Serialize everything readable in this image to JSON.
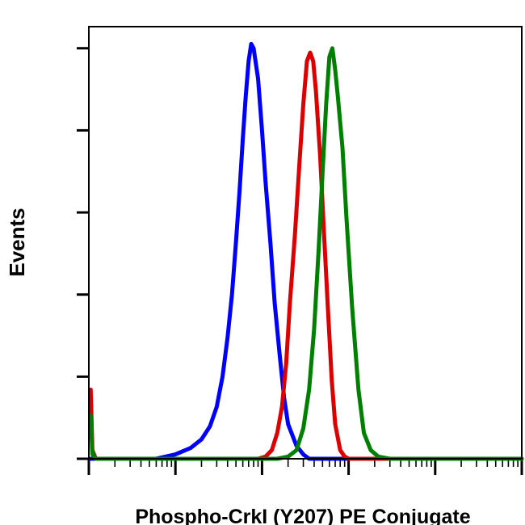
{
  "chart_data": {
    "type": "line",
    "xlabel": "Phospho-CrkI (Y207) PE Conjugate",
    "ylabel": "Events",
    "x_scale": "log",
    "xlim": [
      1,
      100000
    ],
    "ylim": [
      0,
      1
    ],
    "y_major_ticks": [
      0,
      0.19,
      0.38,
      0.57,
      0.76,
      0.95
    ],
    "grid": false,
    "legend": "none",
    "series": [
      {
        "color": "#0000ff",
        "points": [
          [
            1.05,
            0.0
          ],
          [
            6,
            0.0
          ],
          [
            10,
            0.01
          ],
          [
            15,
            0.025
          ],
          [
            20,
            0.045
          ],
          [
            25,
            0.075
          ],
          [
            30,
            0.12
          ],
          [
            35,
            0.19
          ],
          [
            40,
            0.28
          ],
          [
            45,
            0.38
          ],
          [
            50,
            0.5
          ],
          [
            55,
            0.62
          ],
          [
            60,
            0.74
          ],
          [
            65,
            0.84
          ],
          [
            70,
            0.92
          ],
          [
            75,
            0.96
          ],
          [
            80,
            0.95
          ],
          [
            90,
            0.88
          ],
          [
            100,
            0.76
          ],
          [
            110,
            0.64
          ],
          [
            125,
            0.5
          ],
          [
            140,
            0.36
          ],
          [
            160,
            0.24
          ],
          [
            180,
            0.14
          ],
          [
            200,
            0.08
          ],
          [
            250,
            0.03
          ],
          [
            300,
            0.01
          ],
          [
            350,
            0.0
          ],
          [
            100000,
            0.0
          ]
        ]
      },
      {
        "color": "#dd0000",
        "points": [
          [
            1.05,
            0.16
          ],
          [
            1.1,
            0.02
          ],
          [
            1.2,
            0.0
          ],
          [
            90,
            0.0
          ],
          [
            110,
            0.005
          ],
          [
            130,
            0.02
          ],
          [
            150,
            0.06
          ],
          [
            170,
            0.12
          ],
          [
            190,
            0.22
          ],
          [
            210,
            0.36
          ],
          [
            240,
            0.52
          ],
          [
            270,
            0.68
          ],
          [
            300,
            0.82
          ],
          [
            330,
            0.92
          ],
          [
            360,
            0.94
          ],
          [
            390,
            0.92
          ],
          [
            420,
            0.85
          ],
          [
            470,
            0.7
          ],
          [
            520,
            0.52
          ],
          [
            580,
            0.34
          ],
          [
            640,
            0.18
          ],
          [
            700,
            0.08
          ],
          [
            800,
            0.02
          ],
          [
            900,
            0.005
          ],
          [
            1000,
            0.0
          ],
          [
            100000,
            0.0
          ]
        ]
      },
      {
        "color": "#008000",
        "points": [
          [
            1.05,
            0.1
          ],
          [
            1.1,
            0.01
          ],
          [
            1.2,
            0.0
          ],
          [
            150,
            0.0
          ],
          [
            200,
            0.005
          ],
          [
            250,
            0.02
          ],
          [
            300,
            0.07
          ],
          [
            350,
            0.16
          ],
          [
            400,
            0.3
          ],
          [
            450,
            0.48
          ],
          [
            500,
            0.66
          ],
          [
            550,
            0.82
          ],
          [
            600,
            0.93
          ],
          [
            650,
            0.95
          ],
          [
            700,
            0.9
          ],
          [
            750,
            0.84
          ],
          [
            850,
            0.72
          ],
          [
            950,
            0.55
          ],
          [
            1100,
            0.35
          ],
          [
            1300,
            0.16
          ],
          [
            1500,
            0.06
          ],
          [
            1800,
            0.02
          ],
          [
            2200,
            0.005
          ],
          [
            3000,
            0.0
          ],
          [
            100000,
            0.0
          ]
        ]
      }
    ]
  }
}
